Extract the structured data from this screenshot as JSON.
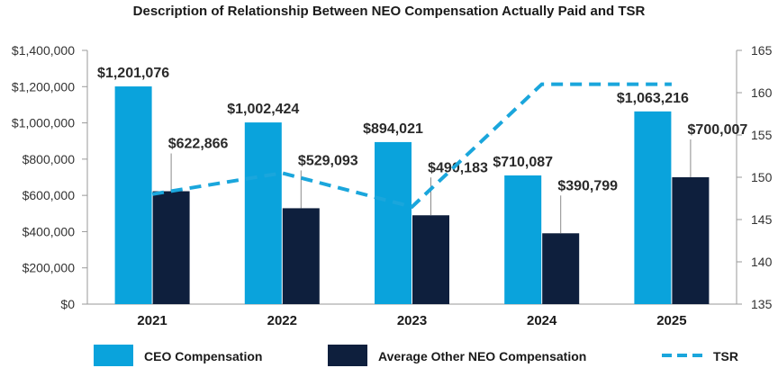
{
  "colors": {
    "ceo": "#0aa3dc",
    "neo": "#0e1f3d",
    "tsr": "#1aa6dc",
    "axis": "#9a9a9a",
    "leader": "#8a8a8a"
  },
  "chart_data": {
    "type": "bar",
    "title": "Description of Relationship Between NEO Compensation Actually Paid and TSR",
    "categories": [
      "2021",
      "2022",
      "2023",
      "2024",
      "2025"
    ],
    "series": [
      {
        "name": "CEO Compensation",
        "type": "bar",
        "axis": "left",
        "values": [
          1201076,
          1002424,
          894021,
          710087,
          1063216
        ],
        "labels": [
          "$1,201,076",
          "$1,002,424",
          "$894,021",
          "$710,087",
          "$1,063,216"
        ]
      },
      {
        "name": "Average Other NEO Compensation",
        "type": "bar",
        "axis": "left",
        "values": [
          622866,
          529093,
          490183,
          390799,
          700007
        ],
        "labels": [
          "$622,866",
          "$529,093",
          "$490,183",
          "$390,799",
          "$700,007"
        ]
      },
      {
        "name": "TSR",
        "type": "line",
        "style": "dashed",
        "axis": "right",
        "values": [
          148,
          150.5,
          146.5,
          161,
          161
        ]
      }
    ],
    "left_axis": {
      "min": 0,
      "max": 1400000,
      "step": 200000,
      "tick_labels": [
        "$0",
        "$200,000",
        "$400,000",
        "$600,000",
        "$800,000",
        "$1,000,000",
        "$1,200,000",
        "$1,400,000"
      ]
    },
    "right_axis": {
      "min": 135,
      "max": 165,
      "step": 5,
      "tick_labels": [
        "135",
        "140",
        "145",
        "150",
        "155",
        "160",
        "165"
      ]
    },
    "legend": {
      "position": "bottom",
      "items": [
        {
          "label": "CEO Compensation",
          "kind": "bar",
          "series": 0
        },
        {
          "label": "Average Other NEO Compensation",
          "kind": "bar",
          "series": 1
        },
        {
          "label": "TSR",
          "kind": "dash",
          "series": 2
        }
      ]
    }
  }
}
